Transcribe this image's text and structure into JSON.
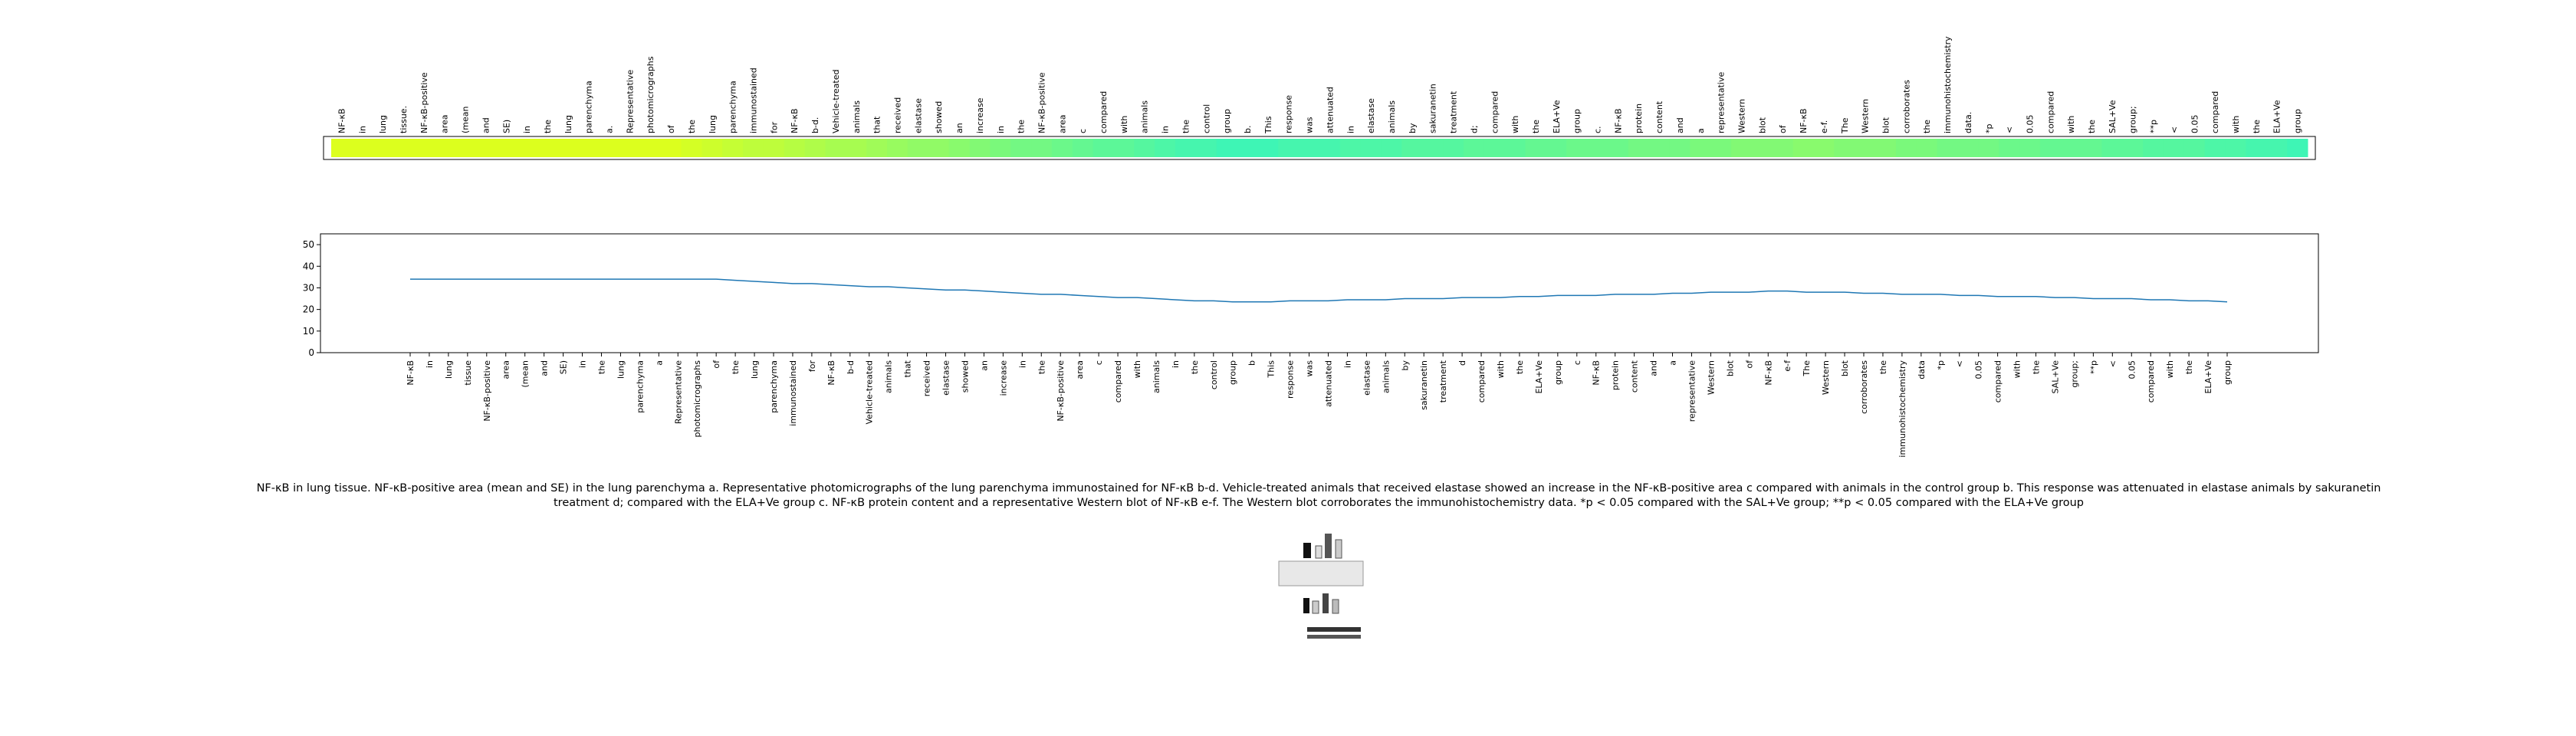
{
  "chart_data": {
    "type": "line",
    "tokens": [
      "NF-κB",
      "in",
      "lung",
      "tissue.",
      "NF-κB-positive",
      "area",
      "(mean",
      "and",
      "SE)",
      "in",
      "the",
      "lung",
      "parenchyma",
      "a.",
      "Representative",
      "photomicrographs",
      "of",
      "the",
      "lung",
      "parenchyma",
      "immunostained",
      "for",
      "NF-κB",
      "b-d.",
      "Vehicle-treated",
      "animals",
      "that",
      "received",
      "elastase",
      "showed",
      "an",
      "increase",
      "in",
      "the",
      "NF-κB-positive",
      "area",
      "c",
      "compared",
      "with",
      "animals",
      "in",
      "the",
      "control",
      "group",
      "b.",
      "This",
      "response",
      "was",
      "attenuated",
      "in",
      "elastase",
      "animals",
      "by",
      "sakuranetin",
      "treatment",
      "d;",
      "compared",
      "with",
      "the",
      "ELA+Ve",
      "group",
      "c.",
      "NF-κB",
      "protein",
      "content",
      "and",
      "a",
      "representative",
      "Western",
      "blot",
      "of",
      "NF-κB",
      "e-f.",
      "The",
      "Western",
      "blot",
      "corroborates",
      "the",
      "immunohistochemistry",
      "data.",
      "*p",
      "<",
      "0.05",
      "compared",
      "with",
      "the",
      "SAL+Ve",
      "group;",
      "**p",
      "<",
      "0.05",
      "compared",
      "with",
      "the",
      "ELA+Ve",
      "group"
    ],
    "categories": [
      "NF-κB",
      "in",
      "lung",
      "tissue",
      "NF-κB-positive",
      "area",
      "(mean",
      "and",
      "SE)",
      "in",
      "the",
      "lung",
      "parenchyma",
      "a",
      "Representative",
      "photomicrographs",
      "of",
      "the",
      "lung",
      "parenchyma",
      "immunostained",
      "for",
      "NF-κB",
      "b-d",
      "Vehicle-treated",
      "animals",
      "that",
      "received",
      "elastase",
      "showed",
      "an",
      "increase",
      "in",
      "the",
      "NF-κB-positive",
      "area",
      "c",
      "compared",
      "with",
      "animals",
      "in",
      "the",
      "control",
      "group",
      "b",
      "This",
      "response",
      "was",
      "attenuated",
      "in",
      "elastase",
      "animals",
      "by",
      "sakuranetin",
      "treatment",
      "d",
      "compared",
      "with",
      "the",
      "ELA+Ve",
      "group",
      "c",
      "NF-κB",
      "protein",
      "content",
      "and",
      "a",
      "representative",
      "Western",
      "blot",
      "of",
      "NF-κB",
      "e-f",
      "The",
      "Western",
      "blot",
      "corroborates",
      "the",
      "immunohistochemistry",
      "data",
      "*p",
      "<",
      "0.05",
      "compared",
      "with",
      "the",
      "SAL+Ve",
      "group;",
      "**p",
      "<",
      "0.05",
      "compared",
      "with",
      "the",
      "ELA+Ve",
      "group"
    ],
    "values": [
      34,
      34,
      34,
      34,
      34,
      34,
      34,
      34,
      34,
      34,
      34,
      34,
      34,
      34,
      34,
      34,
      34,
      33.5,
      33,
      32.5,
      32,
      32,
      31.5,
      31,
      30.5,
      30.5,
      30,
      29.5,
      29,
      29,
      28.5,
      28,
      27.5,
      27,
      27,
      26.5,
      26,
      25.5,
      25.5,
      25,
      24.5,
      24,
      24,
      23.5,
      23.5,
      23.5,
      24,
      24,
      24,
      24.5,
      24.5,
      24.5,
      25,
      25,
      25,
      25.5,
      25.5,
      25.5,
      26,
      26,
      26.5,
      26.5,
      26.5,
      27,
      27,
      27,
      27.5,
      27.5,
      28,
      28,
      28,
      28.5,
      28.5,
      28,
      28,
      28,
      27.5,
      27.5,
      27,
      27,
      27,
      26.5,
      26.5,
      26,
      26,
      26,
      25.5,
      25.5,
      25,
      25,
      25,
      24.5,
      24.5,
      24,
      24,
      23.5
    ],
    "color": "#1f77b4",
    "colormap": [
      "#3ef5b5",
      "#dcff1e"
    ],
    "ylim": [
      0,
      55
    ],
    "yticks": [
      0,
      10,
      20,
      30,
      40,
      50
    ],
    "caption": "NF-κB in lung tissue. NF-κB-positive area (mean and SE) in the lung parenchyma a. Representative photomicrographs of the lung parenchyma immunostained for NF-κB b-d. Vehicle-treated animals that received elastase showed an increase in the NF-κB-positive area c compared with animals in the control group b. This response was attenuated in elastase animals by sakuranetin treatment d; compared with the ELA+Ve group c. NF-κB protein content and a representative Western blot of NF-κB e-f. The Western blot corroborates the immunohistochemistry data. *p < 0.05 compared with the SAL+Ve group; **p < 0.05 compared with the ELA+Ve group"
  }
}
